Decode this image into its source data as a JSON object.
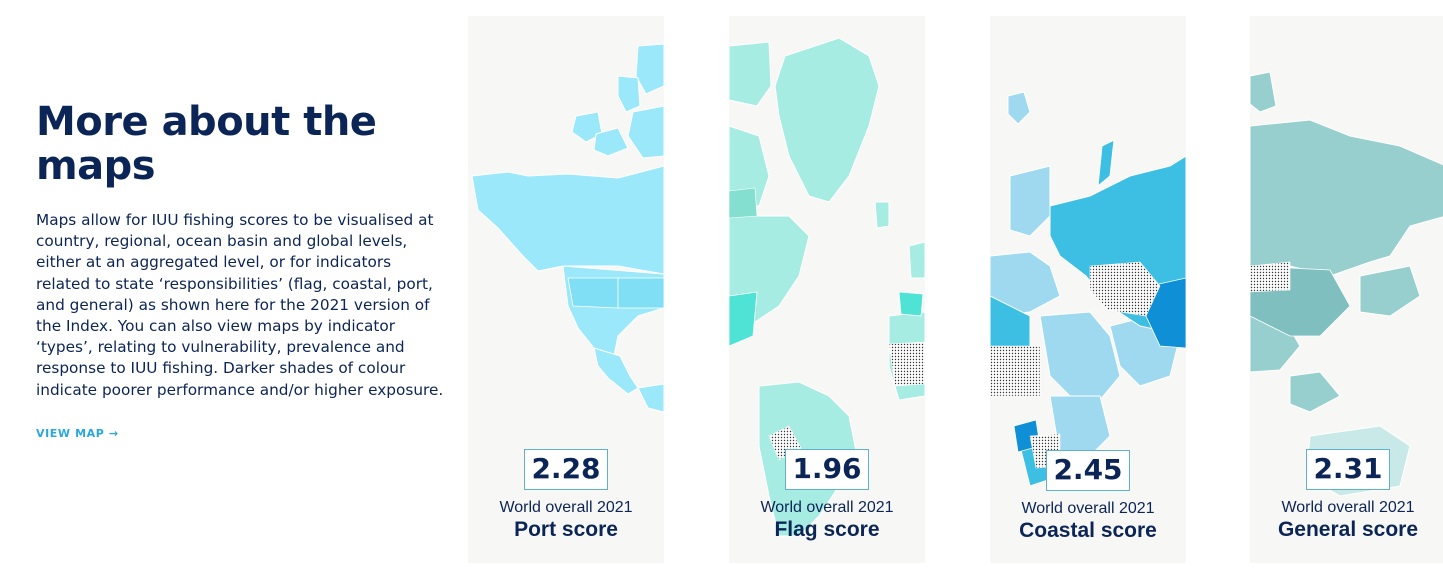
{
  "intro": {
    "heading": "More about the maps",
    "body": "Maps allow for IUU fishing scores to be visualised at country, regional, ocean basin and global levels, either at an aggregated level, or for indicators related to state ‘responsibilities’ (flag, coastal, port, and general) as shown here for the 2021 version of the Index. You can also view maps by indicator ‘types’, relating to vulnerability, prevalence and response to IUU fishing. Darker shades of colour indicate poorer performance and/or higher exposure.",
    "link_label": "VIEW MAP →"
  },
  "panels": [
    {
      "score": "2.28",
      "year_label": "World overall 2021",
      "label": "Port score",
      "region": "Americas",
      "base_color": "#9be8fb"
    },
    {
      "score": "1.96",
      "year_label": "World overall 2021",
      "label": "Flag score",
      "region": "Atlantic",
      "base_color": "#a6ece2"
    },
    {
      "score": "2.45",
      "year_label": "World overall 2021",
      "label": "Coastal score",
      "region": "Europe, Africa and Asia",
      "base_color": "#3dbfe3"
    },
    {
      "score": "2.31",
      "year_label": "World overall 2021",
      "label": "General score",
      "region": "Asia and Oceania",
      "base_color": "#96cfce"
    }
  ]
}
